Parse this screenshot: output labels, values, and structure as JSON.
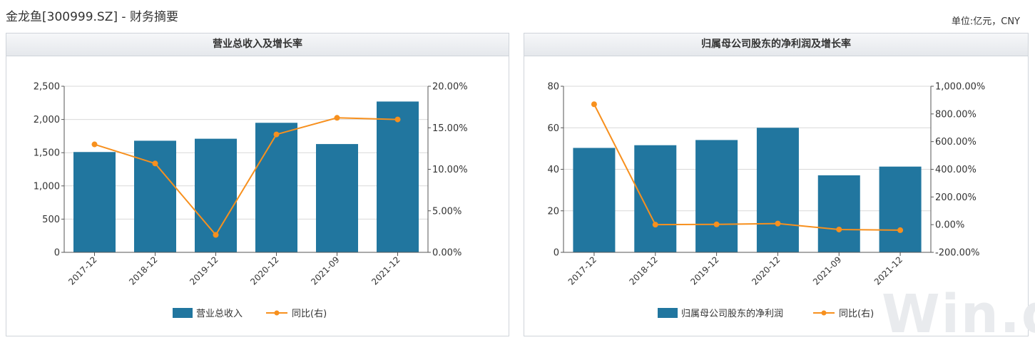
{
  "page": {
    "title": "金龙鱼[300999.SZ] - 财务摘要",
    "unit": "单位:亿元，CNY",
    "watermark": "Win.d"
  },
  "colors": {
    "bar": "#21769f",
    "line": "#f7901e",
    "grid": "#d9d9d9",
    "axis": "#555555"
  },
  "chart_data": [
    {
      "type": "bar",
      "title": "营业总收入及增长率",
      "categories": [
        "2017-12",
        "2018-12",
        "2019-12",
        "2020-12",
        "2021-09",
        "2021-12"
      ],
      "series": [
        {
          "name": "营业总收入",
          "type": "bar",
          "axis": "left",
          "values": [
            1510,
            1680,
            1710,
            1950,
            1630,
            2270
          ]
        },
        {
          "name": "同比(右)",
          "type": "line",
          "axis": "right",
          "values": [
            13.0,
            10.7,
            2.1,
            14.2,
            16.2,
            16.0
          ]
        }
      ],
      "y_left": {
        "min": 0,
        "max": 2500,
        "ticks": [
          0,
          500,
          1000,
          1500,
          2000,
          2500
        ],
        "tick_labels": [
          "0",
          "500",
          "1,000",
          "1,500",
          "2,000",
          "2,500"
        ]
      },
      "y_right": {
        "min": 0,
        "max": 20,
        "ticks": [
          0,
          5,
          10,
          15,
          20
        ],
        "tick_labels": [
          "0.00%",
          "5.00%",
          "10.00%",
          "15.00%",
          "20.00%"
        ]
      },
      "grid": true,
      "legend": "bottom-center"
    },
    {
      "type": "bar",
      "title": "归属母公司股东的净利润及增长率",
      "categories": [
        "2017-12",
        "2018-12",
        "2019-12",
        "2020-12",
        "2021-09",
        "2021-12"
      ],
      "series": [
        {
          "name": "归属母公司股东的净利润",
          "type": "bar",
          "axis": "left",
          "values": [
            50.3,
            51.6,
            54.1,
            60.0,
            37.1,
            41.3
          ]
        },
        {
          "name": "同比(右)",
          "type": "line",
          "axis": "right",
          "values": [
            870,
            0,
            2,
            8,
            -35,
            -40
          ]
        }
      ],
      "y_left": {
        "min": 0,
        "max": 80,
        "ticks": [
          0,
          20,
          40,
          60,
          80
        ],
        "tick_labels": [
          "0",
          "20",
          "40",
          "60",
          "80"
        ]
      },
      "y_right": {
        "min": -200,
        "max": 1000,
        "ticks": [
          -200,
          0,
          200,
          400,
          600,
          800,
          1000
        ],
        "tick_labels": [
          "-200.00%",
          "0.00%",
          "200.00%",
          "400.00%",
          "600.00%",
          "800.00%",
          "1,000.00%"
        ]
      },
      "grid": true,
      "legend": "bottom-center"
    }
  ]
}
